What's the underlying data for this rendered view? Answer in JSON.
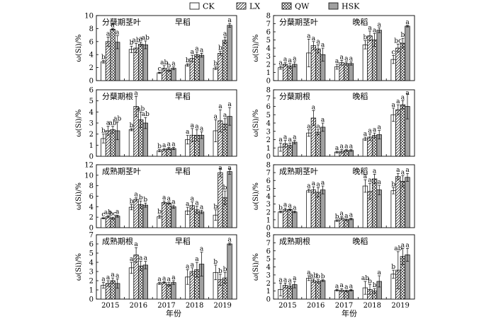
{
  "legend": [
    {
      "name": "CK",
      "pattern": "open"
    },
    {
      "name": "LX",
      "pattern": "diag"
    },
    {
      "name": "QW",
      "pattern": "cross"
    },
    {
      "name": "HSK",
      "pattern": "gray"
    }
  ],
  "xlabel": "年份",
  "years": [
    "2015",
    "2016",
    "2017",
    "2018",
    "2019"
  ],
  "colors": {
    "gray_fill": "#a0a0a0",
    "axis": "#000000"
  },
  "chart_data": [
    {
      "type": "bar",
      "panel_title": "分蘖期茎叶",
      "season": "早稻",
      "ylabel": "ω(Si)/%",
      "ylim": [
        0,
        10
      ],
      "yticks": [
        0,
        2,
        4,
        6,
        8,
        10
      ],
      "categories": [
        "2015",
        "2016",
        "2017",
        "2018",
        "2019"
      ],
      "series": [
        {
          "name": "CK",
          "values": [
            2.9,
            4.8,
            1.2,
            2.4,
            1.9
          ],
          "errors": [
            0.2,
            0.5,
            0.1,
            0.2,
            0.2
          ],
          "letters": [
            "b",
            "b",
            "c",
            "b",
            "b"
          ]
        },
        {
          "name": "LX",
          "values": [
            6.0,
            5.0,
            1.9,
            3.4,
            4.2
          ],
          "errors": [
            0.7,
            0.7,
            0.4,
            0.5,
            0.3
          ],
          "letters": [
            "a",
            "ab",
            "ab",
            "a",
            "b"
          ]
        },
        {
          "name": "QW",
          "values": [
            7.9,
            5.6,
            1.6,
            4.0,
            6.2
          ],
          "errors": [
            0.1,
            0.3,
            0.2,
            0.4,
            0.5
          ],
          "letters": [
            "a",
            "a",
            "b",
            "a",
            "a"
          ]
        },
        {
          "name": "HSK",
          "values": [
            5.9,
            5.5,
            1.9,
            3.9,
            8.5
          ],
          "errors": [
            1.0,
            0.6,
            0.2,
            0.3,
            0.3
          ],
          "letters": [
            "a",
            "ab",
            "a",
            "a",
            "a"
          ]
        }
      ]
    },
    {
      "type": "bar",
      "panel_title": "分蘖期茎叶",
      "season": "晚稻",
      "ylabel": "ω(Si)/%",
      "ylim": [
        0,
        8
      ],
      "yticks": [
        0,
        1,
        2,
        3,
        4,
        5,
        6,
        7,
        8
      ],
      "categories": [
        "2015",
        "2016",
        "2017",
        "2018",
        "2019"
      ],
      "series": [
        {
          "name": "CK",
          "values": [
            1.6,
            3.4,
            1.7,
            4.4,
            2.6
          ],
          "errors": [
            0.2,
            1.7,
            0.3,
            0.5,
            0.5
          ],
          "letters": [
            "a",
            "a",
            "a",
            "b",
            "c"
          ]
        },
        {
          "name": "LX",
          "values": [
            2.0,
            4.3,
            2.2,
            5.5,
            4.0
          ],
          "errors": [
            0.2,
            0.5,
            0.3,
            0.6,
            0.5
          ],
          "letters": [
            "a",
            "a",
            "a",
            "a",
            "bc"
          ]
        },
        {
          "name": "QW",
          "values": [
            1.8,
            3.9,
            2.1,
            5.0,
            4.6
          ],
          "errors": [
            0.3,
            0.5,
            0.2,
            0.8,
            0.6
          ],
          "letters": [
            "a",
            "a",
            "a",
            "a",
            "b"
          ]
        },
        {
          "name": "HSK",
          "values": [
            2.0,
            3.2,
            2.1,
            6.2,
            6.7
          ],
          "errors": [
            0.3,
            0.8,
            0.2,
            0.3,
            0.1
          ],
          "letters": [
            "a",
            "a",
            "a",
            "a",
            "a"
          ]
        }
      ]
    },
    {
      "type": "bar",
      "panel_title": "分蘖期根",
      "season": "早稻",
      "ylabel": "ω(Si)/%",
      "ylim": [
        0,
        6
      ],
      "yticks": [
        0,
        1,
        2,
        3,
        4,
        5,
        6
      ],
      "categories": [
        "2015",
        "2016",
        "2017",
        "2018",
        "2019"
      ],
      "series": [
        {
          "name": "CK",
          "values": [
            1.6,
            2.4,
            0.5,
            1.5,
            2.3
          ],
          "errors": [
            0.4,
            0.1,
            0.1,
            0.4,
            1.0
          ],
          "letters": [
            "b",
            "b",
            "b",
            "a",
            "a"
          ]
        },
        {
          "name": "LX",
          "values": [
            2.3,
            4.5,
            0.6,
            1.9,
            3.2
          ],
          "errors": [
            0.4,
            0.9,
            0.1,
            0.6,
            1.0
          ],
          "letters": [
            "a",
            "a",
            "a",
            "a",
            "a"
          ]
        },
        {
          "name": "QW",
          "values": [
            2.4,
            3.3,
            0.7,
            1.9,
            2.9
          ],
          "errors": [
            0.3,
            0.7,
            0.1,
            0.5,
            0.5
          ],
          "letters": [
            "ab",
            "ab",
            "a",
            "a",
            "a"
          ]
        },
        {
          "name": "HSK",
          "values": [
            2.3,
            3.0,
            0.7,
            1.9,
            3.6
          ],
          "errors": [
            0.8,
            0.5,
            0.1,
            0.3,
            0.8
          ],
          "letters": [
            "ab",
            "ab",
            "a",
            "a",
            "a"
          ]
        }
      ]
    },
    {
      "type": "bar",
      "panel_title": "分蘖期根",
      "season": "晚稻",
      "ylabel": "ω(Si)/%",
      "ylim": [
        0,
        8
      ],
      "yticks": [
        0,
        1,
        2,
        3,
        4,
        5,
        6,
        7,
        8
      ],
      "categories": [
        "2015",
        "2016",
        "2017",
        "2018",
        "2019"
      ],
      "series": [
        {
          "name": "CK",
          "values": [
            1.1,
            2.8,
            0.5,
            2.1,
            5.0
          ],
          "errors": [
            0.5,
            0.4,
            0.1,
            0.2,
            0.8
          ],
          "letters": [
            "a",
            "a",
            "a",
            "a",
            "a"
          ]
        },
        {
          "name": "LX",
          "values": [
            1.5,
            4.6,
            0.6,
            2.3,
            5.6
          ],
          "errors": [
            0.4,
            0.9,
            0.2,
            0.4,
            0.6
          ],
          "letters": [
            "a",
            "a",
            "a",
            "a",
            "a"
          ]
        },
        {
          "name": "QW",
          "values": [
            1.3,
            2.9,
            0.7,
            2.5,
            6.2
          ],
          "errors": [
            0.3,
            0.3,
            0.1,
            0.3,
            0.5
          ],
          "letters": [
            "a",
            "a",
            "a",
            "a",
            "a"
          ]
        },
        {
          "name": "HSK",
          "values": [
            1.7,
            3.5,
            0.7,
            2.6,
            6.0
          ],
          "errors": [
            0.2,
            0.5,
            0.1,
            0.5,
            1.5
          ],
          "letters": [
            "a",
            "a",
            "a",
            "a",
            "a"
          ]
        }
      ]
    },
    {
      "type": "bar",
      "panel_title": "成熟期茎叶",
      "season": "早稻",
      "ylabel": "ω(Si)/%",
      "ylim": [
        0,
        12
      ],
      "yticks": [
        0,
        2,
        4,
        6,
        8,
        10,
        12
      ],
      "categories": [
        "2015",
        "2016",
        "2017",
        "2018",
        "2019"
      ],
      "series": [
        {
          "name": "CK",
          "values": [
            1.8,
            3.9,
            2.1,
            3.2,
            2.4
          ],
          "errors": [
            0.1,
            0.5,
            0.3,
            0.7,
            1.0
          ],
          "letters": [
            "c",
            "b",
            "b",
            "a",
            "b"
          ]
        },
        {
          "name": "LX",
          "values": [
            2.1,
            5.4,
            4.8,
            4.2,
            10.5
          ],
          "errors": [
            0.2,
            0.3,
            0.3,
            0.7,
            0.8
          ],
          "letters": [
            "ab",
            "a",
            "a",
            "a",
            "a"
          ]
        },
        {
          "name": "QW",
          "values": [
            1.8,
            4.4,
            4.7,
            3.4,
            5.7
          ],
          "errors": [
            0.2,
            0.7,
            0.2,
            0.7,
            1.3
          ],
          "letters": [
            "bc",
            "b",
            "a",
            "a",
            "b"
          ]
        },
        {
          "name": "HSK",
          "values": [
            2.2,
            4.3,
            4.0,
            3.0,
            10.7
          ],
          "errors": [
            0.2,
            0.4,
            0.3,
            0.3,
            0.5
          ],
          "letters": [
            "a",
            "b",
            "a",
            "a",
            "a"
          ]
        }
      ]
    },
    {
      "type": "bar",
      "panel_title": "成熟期茎叶",
      "season": "晚稻",
      "ylabel": "ω(Si)/%",
      "ylim": [
        0,
        8
      ],
      "yticks": [
        0,
        1,
        2,
        3,
        4,
        5,
        6,
        7,
        8
      ],
      "categories": [
        "2015",
        "2016",
        "2017",
        "2018",
        "2019"
      ],
      "series": [
        {
          "name": "CK",
          "values": [
            2.0,
            4.7,
            0.9,
            5.3,
            4.7
          ],
          "errors": [
            0.1,
            0.2,
            0.1,
            0.8,
            0.4
          ],
          "letters": [
            "b",
            "a",
            "b",
            "a",
            "b"
          ]
        },
        {
          "name": "LX",
          "values": [
            2.3,
            4.8,
            1.2,
            4.6,
            6.5
          ],
          "errors": [
            0.2,
            0.4,
            0.2,
            1.0,
            0.4
          ],
          "letters": [
            "a",
            "a",
            "a",
            "a",
            "a"
          ]
        },
        {
          "name": "QW",
          "values": [
            2.3,
            4.5,
            1.0,
            6.2,
            5.9
          ],
          "errors": [
            0.1,
            0.6,
            0.1,
            0.6,
            0.7
          ],
          "letters": [
            "a",
            "a",
            "a",
            "a",
            "a"
          ]
        },
        {
          "name": "HSK",
          "values": [
            2.0,
            4.8,
            1.1,
            4.8,
            6.4
          ],
          "errors": [
            0.1,
            0.5,
            0.1,
            0.6,
            0.5
          ],
          "letters": [
            "a",
            "a",
            "a",
            "a",
            "a"
          ]
        }
      ]
    },
    {
      "type": "bar",
      "panel_title": "成熟期根",
      "season": "早稻",
      "ylabel": "ω(Si)/%",
      "ylim": [
        0,
        7
      ],
      "yticks": [
        0,
        1,
        2,
        3,
        4,
        5,
        6,
        7
      ],
      "categories": [
        "2015",
        "2016",
        "2017",
        "2018",
        "2019"
      ],
      "series": [
        {
          "name": "CK",
          "values": [
            1.5,
            3.4,
            1.7,
            2.4,
            2.9
          ],
          "errors": [
            0.3,
            0.6,
            0.1,
            0.8,
            0.8
          ],
          "letters": [
            "a",
            "a",
            "a",
            "a",
            "b"
          ]
        },
        {
          "name": "LX",
          "values": [
            1.7,
            4.8,
            1.8,
            3.0,
            2.1
          ],
          "errors": [
            0.3,
            0.8,
            0.1,
            0.4,
            0.6
          ],
          "letters": [
            "a",
            "a",
            "a",
            "a",
            "b"
          ]
        },
        {
          "name": "QW",
          "values": [
            2.0,
            3.6,
            1.6,
            3.2,
            2.3
          ],
          "errors": [
            0.3,
            0.5,
            0.2,
            0.8,
            0.6
          ],
          "letters": [
            "a",
            "a",
            "a",
            "a",
            "b"
          ]
        },
        {
          "name": "HSK",
          "values": [
            1.7,
            3.7,
            1.8,
            3.8,
            6.0
          ],
          "errors": [
            0.5,
            0.4,
            0.2,
            1.3,
            0.1
          ],
          "letters": [
            "a",
            "a",
            "a",
            "a",
            "a"
          ]
        }
      ]
    },
    {
      "type": "bar",
      "panel_title": "成熟期根",
      "season": "晚稻",
      "ylabel": "ω(Si)/%",
      "ylim": [
        0,
        8
      ],
      "yticks": [
        0,
        1,
        2,
        3,
        4,
        5,
        6,
        7,
        8
      ],
      "categories": [
        "2015",
        "2016",
        "2017",
        "2018",
        "2019"
      ],
      "series": [
        {
          "name": "CK",
          "values": [
            1.2,
            2.6,
            1.1,
            1.4,
            3.1
          ],
          "errors": [
            0.8,
            0.3,
            0.1,
            0.8,
            0.5
          ],
          "letters": [
            "a",
            "a",
            "a",
            "ab",
            "b"
          ]
        },
        {
          "name": "LX",
          "values": [
            1.7,
            2.3,
            1.1,
            1.2,
            3.6
          ],
          "errors": [
            0.3,
            0.2,
            0.2,
            0.6,
            2.3
          ],
          "letters": [
            "a",
            "ab",
            "a",
            "b",
            "ab"
          ]
        },
        {
          "name": "QW",
          "values": [
            1.6,
            2.2,
            1.0,
            1.0,
            5.3
          ],
          "errors": [
            0.3,
            0.2,
            0.1,
            0.3,
            1.0
          ],
          "letters": [
            "a",
            "b",
            "a",
            "b",
            "a"
          ]
        },
        {
          "name": "HSK",
          "values": [
            1.8,
            2.3,
            1.1,
            2.2,
            5.5
          ],
          "errors": [
            0.4,
            0.1,
            0.1,
            0.7,
            0.8
          ],
          "letters": [
            "a",
            "b",
            "a",
            "a",
            "a"
          ]
        }
      ]
    }
  ]
}
